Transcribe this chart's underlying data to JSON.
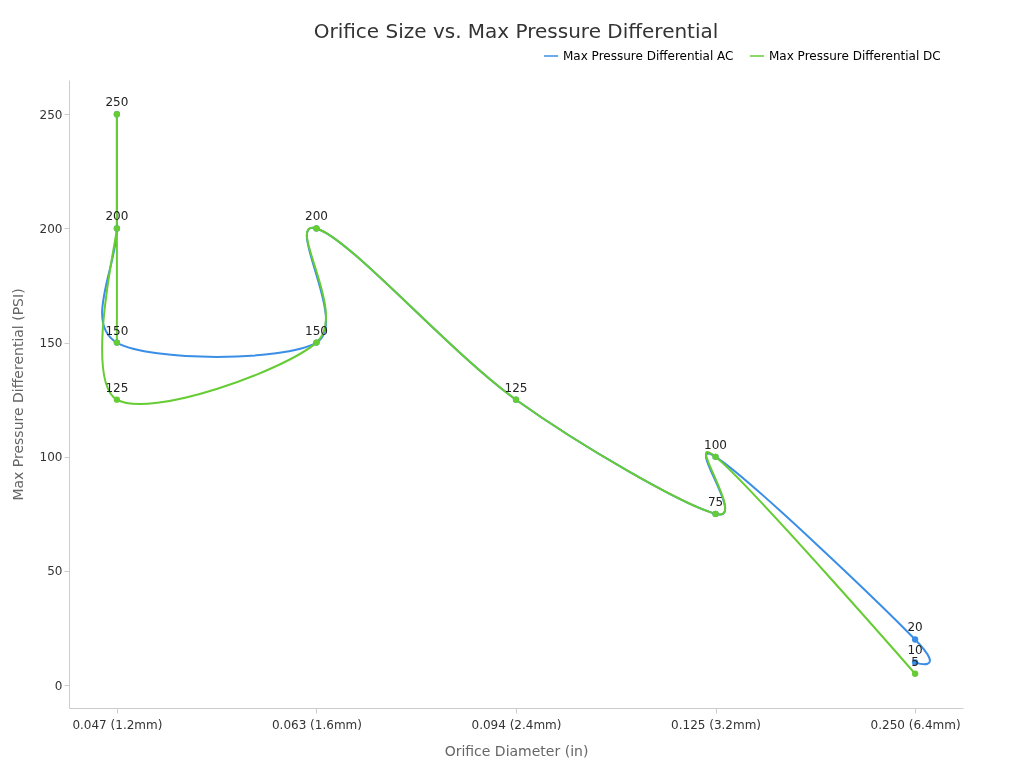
{
  "chart_data": {
    "type": "line",
    "title": "Orifice Size vs. Max Pressure Differential",
    "xlabel": "Orifice Diameter (in)",
    "ylabel": "Max Pressure Differential (PSI)",
    "categories": [
      "0.047 (1.2mm)",
      "0.063 (1.6mm)",
      "0.094 (2.4mm)",
      "0.125 (3.2mm)",
      "0.250 (6.4mm)"
    ],
    "series": [
      {
        "name": "Max Pressure Differential AC",
        "color": "#3a8ee6",
        "x": [
          "0.047 (1.2mm)",
          "0.047 (1.2mm)",
          "0.047 (1.2mm)",
          "0.063 (1.6mm)",
          "0.063 (1.6mm)",
          "0.094 (2.4mm)",
          "0.125 (3.2mm)",
          "0.125 (3.2mm)",
          "0.250 (6.4mm)",
          "0.250 (6.4mm)"
        ],
        "values": [
          250,
          200,
          150,
          150,
          200,
          125,
          75,
          100,
          20,
          10
        ],
        "value_labels": [
          "250",
          "200",
          "150",
          "150",
          "200",
          "125",
          "75",
          "100",
          "20",
          "10"
        ]
      },
      {
        "name": "Max Pressure Differential DC",
        "color": "#66cc33",
        "x": [
          "0.047 (1.2mm)",
          "0.047 (1.2mm)",
          "0.047 (1.2mm)",
          "0.047 (1.2mm)",
          "0.063 (1.6mm)",
          "0.063 (1.6mm)",
          "0.094 (2.4mm)",
          "0.125 (3.2mm)",
          "0.125 (3.2mm)",
          "0.250 (6.4mm)"
        ],
        "values": [
          250,
          150,
          200,
          125,
          150,
          200,
          125,
          75,
          100,
          5
        ],
        "value_labels": [
          null,
          null,
          null,
          "125",
          null,
          null,
          null,
          null,
          null,
          "5"
        ]
      }
    ],
    "ylim": [
      -10,
      265
    ],
    "yticks": [
      0,
      50,
      100,
      150,
      200,
      250
    ],
    "grid": false,
    "legend": "top right",
    "marker": "circle",
    "line_style": "solid"
  }
}
